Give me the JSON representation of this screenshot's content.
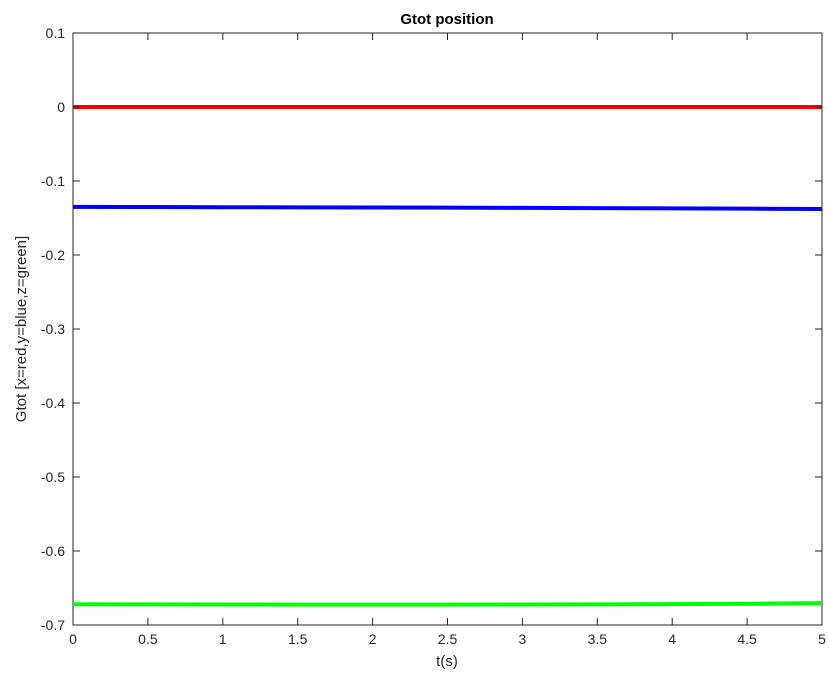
{
  "chart_data": {
    "type": "line",
    "title": "Gtot position",
    "xlabel": "t(s)",
    "ylabel": "Gtot [x=red,y=blue,z=green]",
    "xlim": [
      0,
      5
    ],
    "ylim": [
      -0.7,
      0.1
    ],
    "xticks": [
      0,
      0.5,
      1,
      1.5,
      2,
      2.5,
      3,
      3.5,
      4,
      4.5,
      5
    ],
    "xtick_labels": [
      "0",
      "0.5",
      "1",
      "1.5",
      "2",
      "2.5",
      "3",
      "3.5",
      "4",
      "4.5",
      "5"
    ],
    "yticks": [
      -0.7,
      -0.6,
      -0.5,
      -0.4,
      -0.3,
      -0.2,
      -0.1,
      0,
      0.1
    ],
    "ytick_labels": [
      "-0.7",
      "-0.6",
      "-0.5",
      "-0.4",
      "-0.3",
      "-0.2",
      "-0.1",
      "0",
      "0.1"
    ],
    "grid": false,
    "series": [
      {
        "color": "#ff0000",
        "x": [
          0,
          0.5,
          1,
          1.5,
          2,
          2.5,
          3,
          3.5,
          4,
          4.5,
          5
        ],
        "y": [
          0,
          0,
          0,
          0,
          0,
          0,
          0,
          0,
          0,
          0,
          0
        ]
      },
      {
        "color": "#0000ff",
        "x": [
          0,
          0.5,
          1,
          1.5,
          2,
          2.5,
          3,
          3.5,
          4,
          4.5,
          5
        ],
        "y": [
          -0.135,
          -0.1352,
          -0.1354,
          -0.1356,
          -0.1358,
          -0.136,
          -0.1363,
          -0.1366,
          -0.137,
          -0.1374,
          -0.1378
        ]
      },
      {
        "color": "#00ff00",
        "x": [
          0,
          0.5,
          1,
          1.5,
          2,
          2.5,
          3,
          3.5,
          4,
          4.5,
          5
        ],
        "y": [
          -0.672,
          -0.6722,
          -0.6723,
          -0.6724,
          -0.6724,
          -0.6724,
          -0.6723,
          -0.6721,
          -0.6718,
          -0.6713,
          -0.6705
        ]
      }
    ]
  }
}
